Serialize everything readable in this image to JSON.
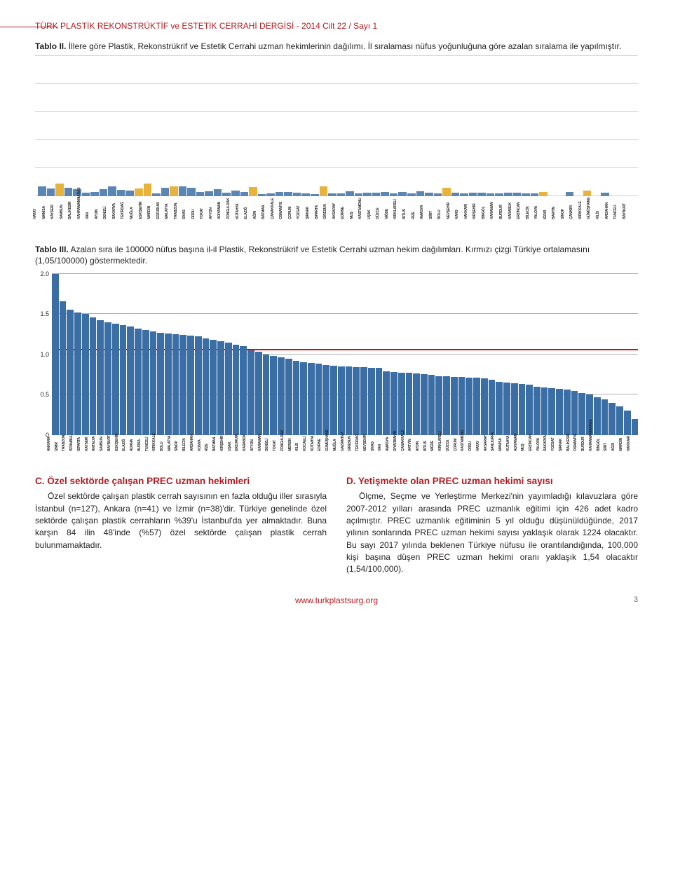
{
  "header": "TÜRK PLASTİK REKONSTRÜKTİF ve ESTETİK CERRAHİ DERGİSİ  -  2014 Cilt 22 / Sayı 1",
  "tablo2_caption_bold": "Tablo II.",
  "tablo2_caption": " İllere göre Plastik, Rekonstrükrif ve Estetik Cerrahi uzman hekimlerinin dağılımı. İl sıralaması nüfus yoğunluğuna göre azalan sıralama ile yapılmıştır.",
  "tablo3_caption_bold": "Tablo III.",
  "tablo3_caption": " Azalan sıra ile 100000 nüfus başına il-il Plastik, Rekonstrükrif ve Estetik Cerrahi uzman hekim dağılımları. Kırmızı çizgi Türkiye ortalamasını (1,05/100000) göstermektedir.",
  "chart1": {
    "gridline_color": "#d0d0d0",
    "gridline_count": 6,
    "bar_area_height": 200,
    "labels": [
      "HATAY",
      "MANİSA",
      "KAYSERİ",
      "SAMSUN",
      "BALIKESİR",
      "KAHRAMANMARAŞ",
      "VAN",
      "AYDIN",
      "DENİZLİ",
      "SAKARYA",
      "TEKİRDAĞ",
      "MUĞLA",
      "ESKİŞEHİR",
      "MARDİN",
      "ERZURUM",
      "MALATYA",
      "TRABZON",
      "SİVAS",
      "ORDU",
      "TOKAT",
      "AFYON",
      "ADIYAMAN",
      "ZONGULDAK",
      "KÜTAHYA",
      "ELAZIĞ",
      "AĞRI",
      "BATMAN",
      "ÇANAKKALE",
      "OSMANİYE",
      "ÇORUM",
      "YOZGAT",
      "ŞIRNAK",
      "ISPARTA",
      "GİRESUN",
      "AKSARAY",
      "EDİRNE",
      "MUŞ",
      "KASTAMONU",
      "UŞAK",
      "DÜZCE",
      "NİĞDE",
      "KIRKLARELİ",
      "BİTLİS",
      "RİZE",
      "AMASYA",
      "SİİRT",
      "BOLU",
      "NEVŞEHİR",
      "KARS",
      "HAKKARİ",
      "KIRŞEHİR",
      "BİNGÖL",
      "KARAMAN",
      "BURDUR",
      "KARABÜK",
      "ERZİNCAN",
      "BİLECİK",
      "YALOVA",
      "IĞDIR",
      "BARTIN",
      "SİNOP",
      "ÇANKIRI",
      "KIRIKKALE",
      "GÜMÜŞHANE",
      "KİLİS",
      "ARDAHAN",
      "TUNCELİ",
      "BAYBURT"
    ],
    "heights": [
      14,
      11,
      18,
      12,
      10,
      5,
      6,
      10,
      14,
      9,
      8,
      11,
      18,
      4,
      12,
      14,
      14,
      12,
      6,
      7,
      10,
      5,
      8,
      6,
      13,
      3,
      4,
      6,
      6,
      5,
      4,
      3,
      14,
      4,
      4,
      7,
      4,
      5,
      5,
      6,
      4,
      6,
      4,
      7,
      5,
      4,
      12,
      5,
      4,
      5,
      5,
      4,
      4,
      5,
      5,
      4,
      4,
      6,
      0,
      0,
      6,
      0,
      8,
      0,
      5,
      0,
      0,
      0
    ],
    "colors": [
      "#5b86b3",
      "#5b86b3",
      "#e8b23b",
      "#5b86b3",
      "#5b86b3",
      "#5b86b3",
      "#5b86b3",
      "#5b86b3",
      "#5b86b3",
      "#5b86b3",
      "#5b86b3",
      "#e8b23b",
      "#e8b23b",
      "#5b86b3",
      "#5b86b3",
      "#e8b23b",
      "#5b86b3",
      "#5b86b3",
      "#5b86b3",
      "#5b86b3",
      "#5b86b3",
      "#5b86b3",
      "#5b86b3",
      "#5b86b3",
      "#e8b23b",
      "#5b86b3",
      "#5b86b3",
      "#5b86b3",
      "#5b86b3",
      "#5b86b3",
      "#5b86b3",
      "#5b86b3",
      "#e8b23b",
      "#5b86b3",
      "#5b86b3",
      "#5b86b3",
      "#5b86b3",
      "#5b86b3",
      "#5b86b3",
      "#5b86b3",
      "#5b86b3",
      "#5b86b3",
      "#5b86b3",
      "#5b86b3",
      "#5b86b3",
      "#5b86b3",
      "#e8b23b",
      "#5b86b3",
      "#5b86b3",
      "#5b86b3",
      "#5b86b3",
      "#5b86b3",
      "#5b86b3",
      "#5b86b3",
      "#5b86b3",
      "#5b86b3",
      "#5b86b3",
      "#e8b23b",
      "#5b86b3",
      "#5b86b3",
      "#5b86b3",
      "#5b86b3",
      "#e8b23b",
      "#5b86b3",
      "#5b86b3",
      "#5b86b3",
      "#5b86b3",
      "#5b86b3"
    ]
  },
  "chart2": {
    "ymax": 2.0,
    "yticks": [
      "0",
      "0.5",
      "1.0",
      "1.5",
      "2.0"
    ],
    "ytick_vals": [
      0,
      0.5,
      1.0,
      1.5,
      2.0
    ],
    "ref_value": 1.05,
    "ref_color": "#e30613",
    "bar_color": "#3a6ea5",
    "gridline_color": "#b0b0b0",
    "labels": [
      "ANKARA",
      "İZMİR",
      "TRABZON",
      "İSTANBUL",
      "ISPARTA",
      "KAYSERİ",
      "ANTALYA",
      "SAMSUN",
      "BAYBURT",
      "ESKİŞEHİR",
      "ELAZIĞ",
      "ADANA",
      "BURSA",
      "TUNCELİ",
      "KIRIKKALE",
      "BOLU",
      "MALATYA",
      "SİNOP",
      "BİLECİK",
      "ARDAHAN",
      "KONYA",
      "RİZE",
      "BATMAN",
      "KIRŞEHİR",
      "UŞAK",
      "ERZURUM",
      "KARABÜK",
      "AFYON",
      "KARAMAN",
      "DENİZLİ",
      "TOKAT",
      "ZONGULDAK",
      "MERSİN",
      "KİLİS",
      "KOCAELİ",
      "KÜTAHYA",
      "EDİRNE",
      "GÜMÜŞHANE",
      "MUĞLA",
      "GAZİANTEP",
      "GİRESUN",
      "TEKİRDAĞ",
      "NEVŞEHİR",
      "SİVAS",
      "VAN",
      "AMASYA",
      "DİYARBAKIR",
      "ÇANAKKALE",
      "ARTVİN",
      "AYDIN",
      "BİTLİS",
      "NİĞDE",
      "KIRKLARELİ",
      "DÜZCE",
      "ÇORUM",
      "KASTAMONU",
      "ORDU",
      "HATAY",
      "AKSARAY",
      "ŞANLIURFA",
      "MANİSA",
      "KÜTAHYA",
      "ADIYAMAN",
      "MUŞ",
      "ERZİNCAN",
      "YALOVA",
      "SAKARYA",
      "YOZGAT",
      "ŞIRNAK",
      "BALIKESİR",
      "OSMANİYE",
      "BURDUR",
      "KAHRAMANMARAŞ",
      "BİNGÖL",
      "SİİRT",
      "AĞRI",
      "MARDİN",
      "HAKKARİ"
    ],
    "values": [
      2.0,
      1.66,
      1.55,
      1.52,
      1.5,
      1.46,
      1.42,
      1.4,
      1.38,
      1.36,
      1.34,
      1.32,
      1.3,
      1.28,
      1.27,
      1.26,
      1.25,
      1.24,
      1.23,
      1.22,
      1.2,
      1.18,
      1.16,
      1.14,
      1.12,
      1.1,
      1.05,
      1.03,
      1.0,
      0.98,
      0.96,
      0.94,
      0.92,
      0.9,
      0.89,
      0.88,
      0.87,
      0.86,
      0.85,
      0.85,
      0.84,
      0.84,
      0.83,
      0.83,
      0.79,
      0.78,
      0.77,
      0.77,
      0.76,
      0.75,
      0.74,
      0.73,
      0.73,
      0.72,
      0.72,
      0.71,
      0.71,
      0.7,
      0.68,
      0.66,
      0.65,
      0.64,
      0.63,
      0.62,
      0.6,
      0.59,
      0.58,
      0.57,
      0.56,
      0.54,
      0.52,
      0.5,
      0.47,
      0.44,
      0.4,
      0.35,
      0.3,
      0.2
    ]
  },
  "colC_title": "C. Özel sektörde çalışan PREC uzman hekimleri",
  "colC_body": "Özel sektörde çalışan plastik cerrah sayısının en fazla olduğu iller sırasıyla İstanbul (n=127), Ankara (n=41) ve İzmir (n=38)'dir. Türkiye genelinde özel sektörde çalışan plastik cerrahların %39'u İstanbul'da yer almaktadır. Buna karşın 84 ilin 48'inde (%57) özel sektörde çalışan plastik cerrah bulunmamaktadır.",
  "colD_title": "D. Yetişmekte olan PREC uzman hekimi sayısı",
  "colD_body": "Ölçme, Seçme ve Yerleştirme Merkezi'nin yayımladığı kılavuzlara göre 2007-2012 yılları arasında PREC uzmanlık eğitimi için 426 adet kadro açılmıştır. PREC uzmanlık eğitiminin 5 yıl olduğu düşünüldüğünde, 2017 yılının sonlarında PREC uzman hekimi sayısı yaklaşık olarak 1224 olacaktır. Bu sayı 2017 yılında beklenen Türkiye nüfusu ile orantılandığında, 100,000 kişi başına düşen PREC uzman hekimi oranı yaklaşık 1,54 olacaktır (1,54/100,000).",
  "footer_link": "www.turkplastsurg.org",
  "page_number": "3"
}
